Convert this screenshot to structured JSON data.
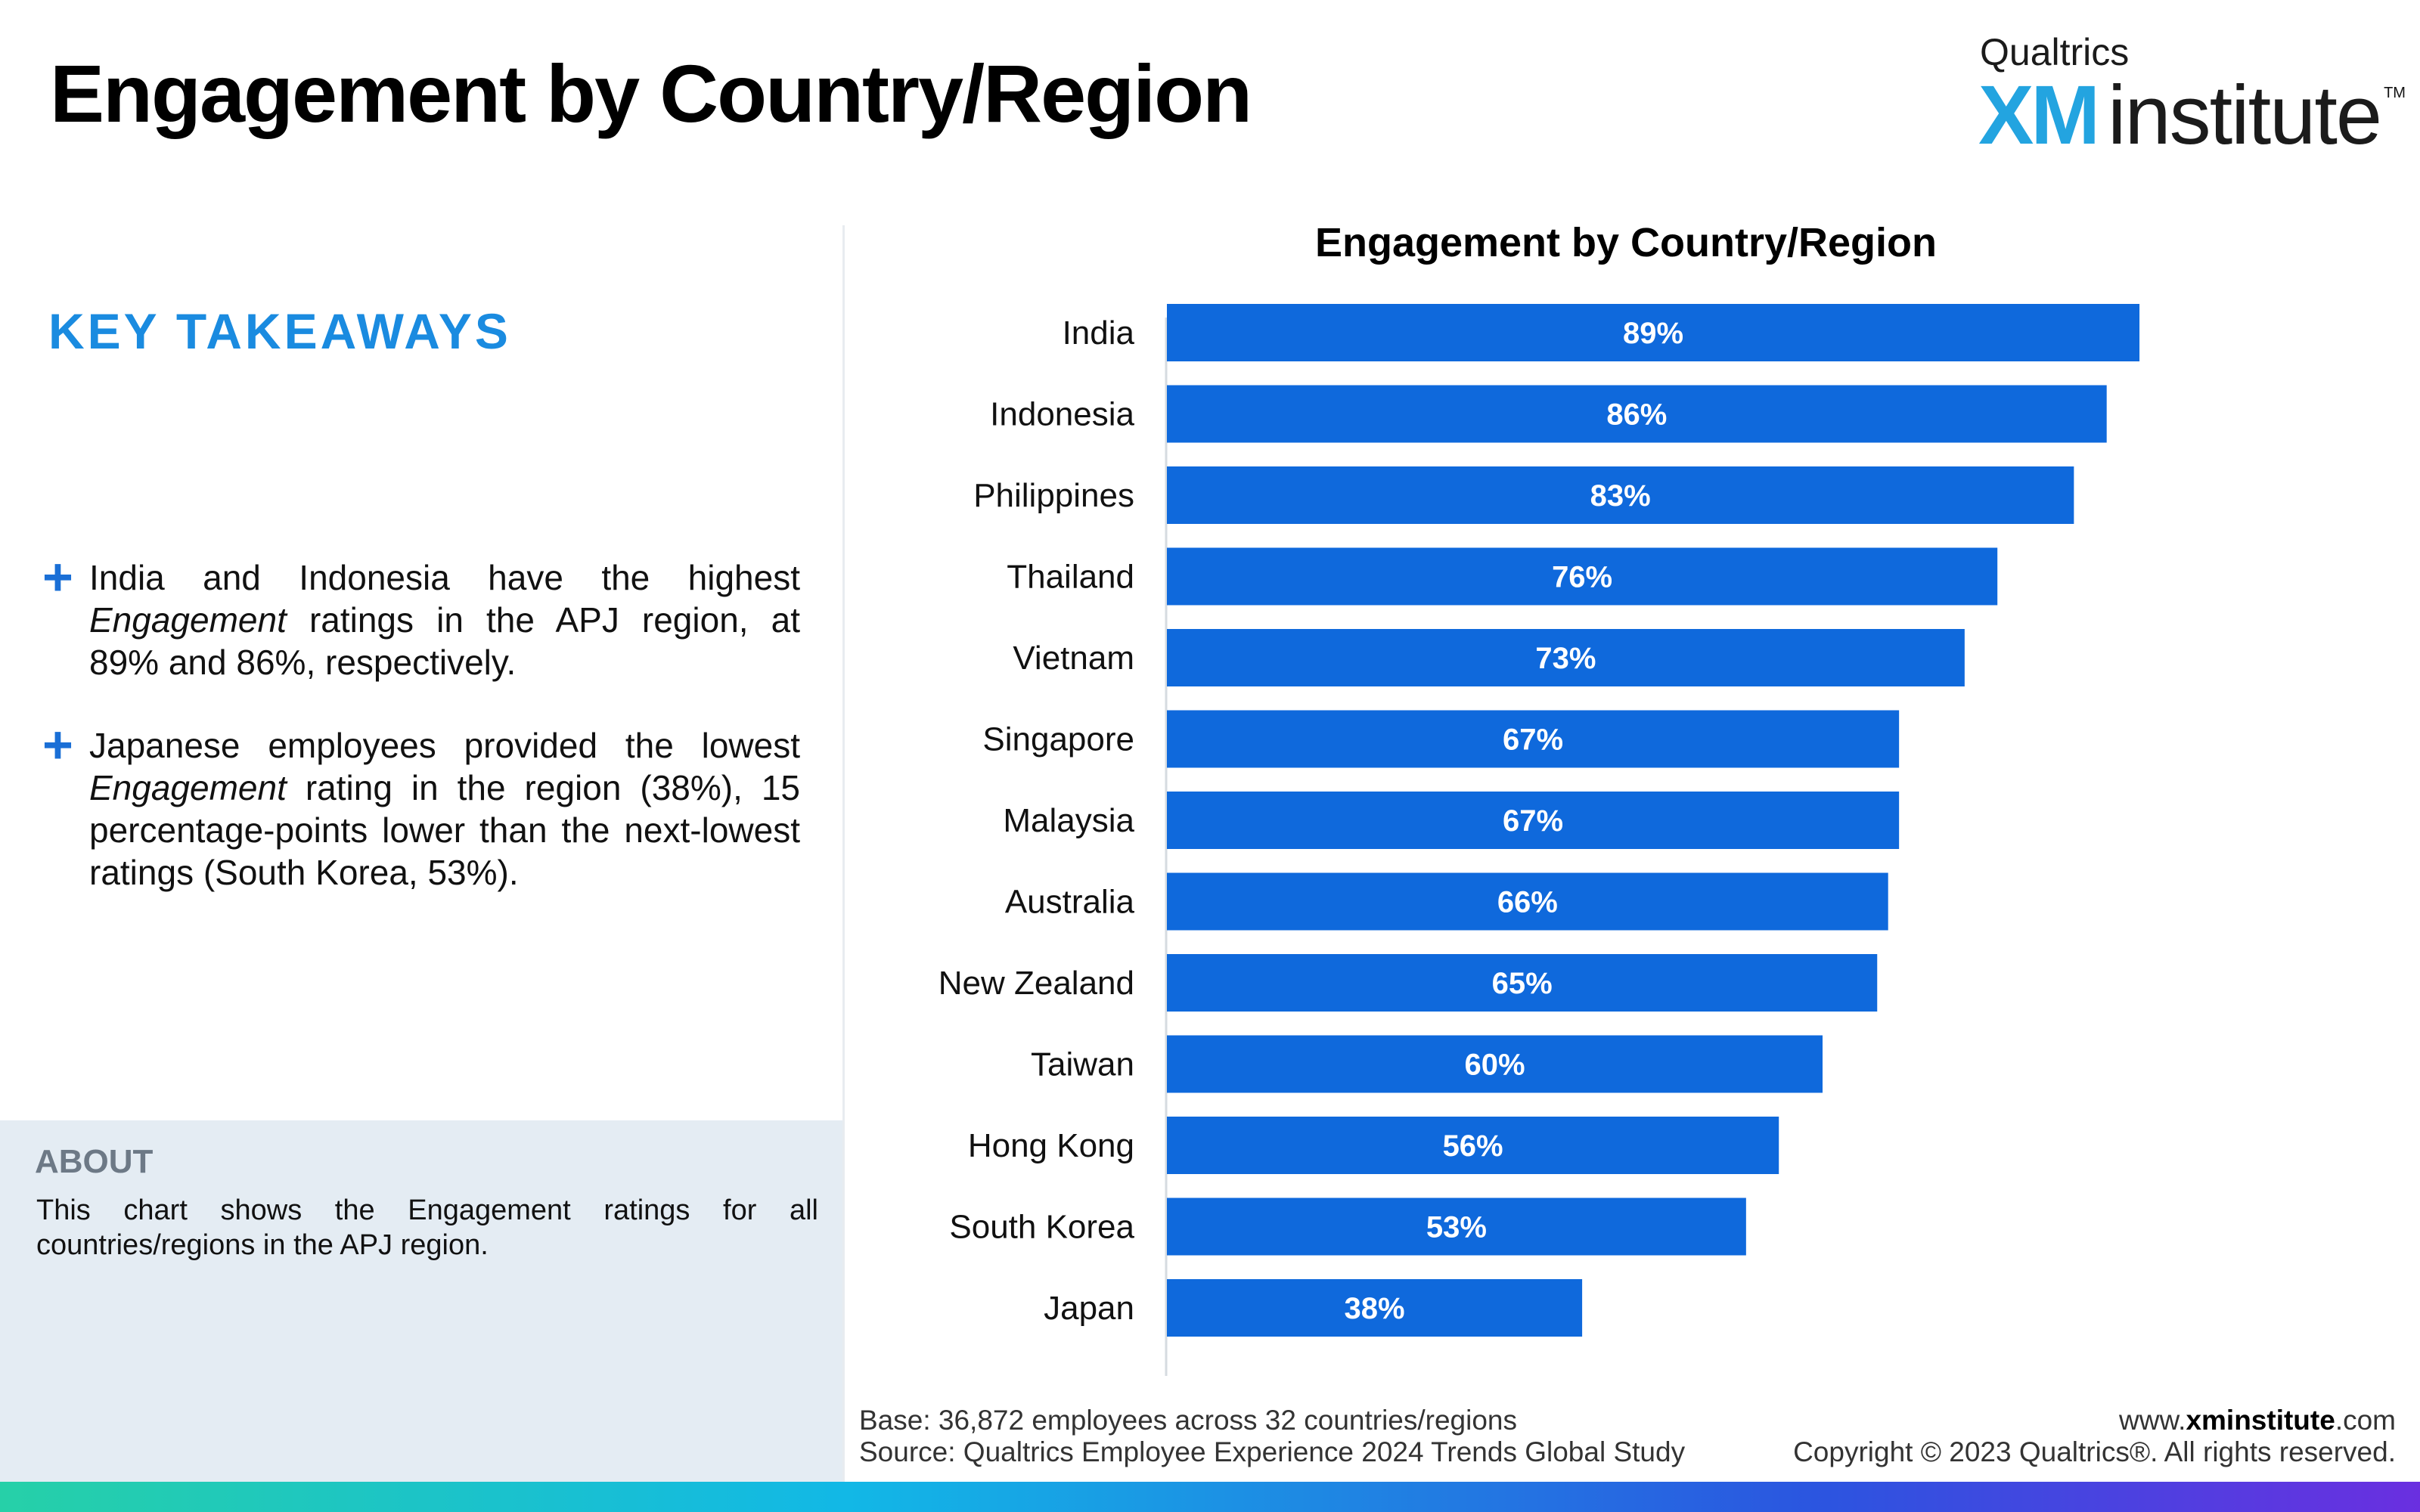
{
  "page": {
    "title": "Engagement by Country/Region"
  },
  "logo": {
    "top": "Qualtrics",
    "xm": "XM",
    "institute": "institute",
    "tm": "TM"
  },
  "takeaways": {
    "heading": "KEY TAKEAWAYS",
    "bullets": [
      {
        "pre": "India and Indonesia have the highest ",
        "em": "Engagement",
        "post": " ratings in the APJ region, at 89% and 86%, respectively."
      },
      {
        "pre": "Japanese employees provided the lowest ",
        "em": "Engagement",
        "post": " rating in the region (38%), 15 percentage-points lower than the next-lowest ratings (South Korea, 53%)."
      }
    ]
  },
  "about": {
    "heading": "ABOUT",
    "text": "This chart shows the Engagement ratings for all countries/regions  in the APJ region."
  },
  "chart_data": {
    "type": "bar",
    "orientation": "horizontal",
    "title": "Engagement by Country/Region",
    "categories": [
      "India",
      "Indonesia",
      "Philippines",
      "Thailand",
      "Vietnam",
      "Singapore",
      "Malaysia",
      "Australia",
      "New Zealand",
      "Taiwan",
      "Hong Kong",
      "South Korea",
      "Japan"
    ],
    "values": [
      89,
      86,
      83,
      76,
      73,
      67,
      67,
      66,
      65,
      60,
      56,
      53,
      38
    ],
    "data_labels": [
      "89%",
      "86%",
      "83%",
      "76%",
      "73%",
      "67%",
      "67%",
      "66%",
      "65%",
      "60%",
      "56%",
      "53%",
      "38%"
    ],
    "xlim": [
      0,
      100
    ],
    "grid": false,
    "bar_color": "#0f69dc",
    "label_color": "#ffffff"
  },
  "footnote": {
    "base": "Base: 36,872 employees across 32 countries/regions",
    "source": "Source: Qualtrics Employee Experience 2024 Trends Global Study"
  },
  "credit": {
    "url_prefix": "www.",
    "url_domain": "xminstitute",
    "url_suffix": ".com",
    "copyright": "Copyright © 2023 Qualtrics®. All rights reserved."
  }
}
